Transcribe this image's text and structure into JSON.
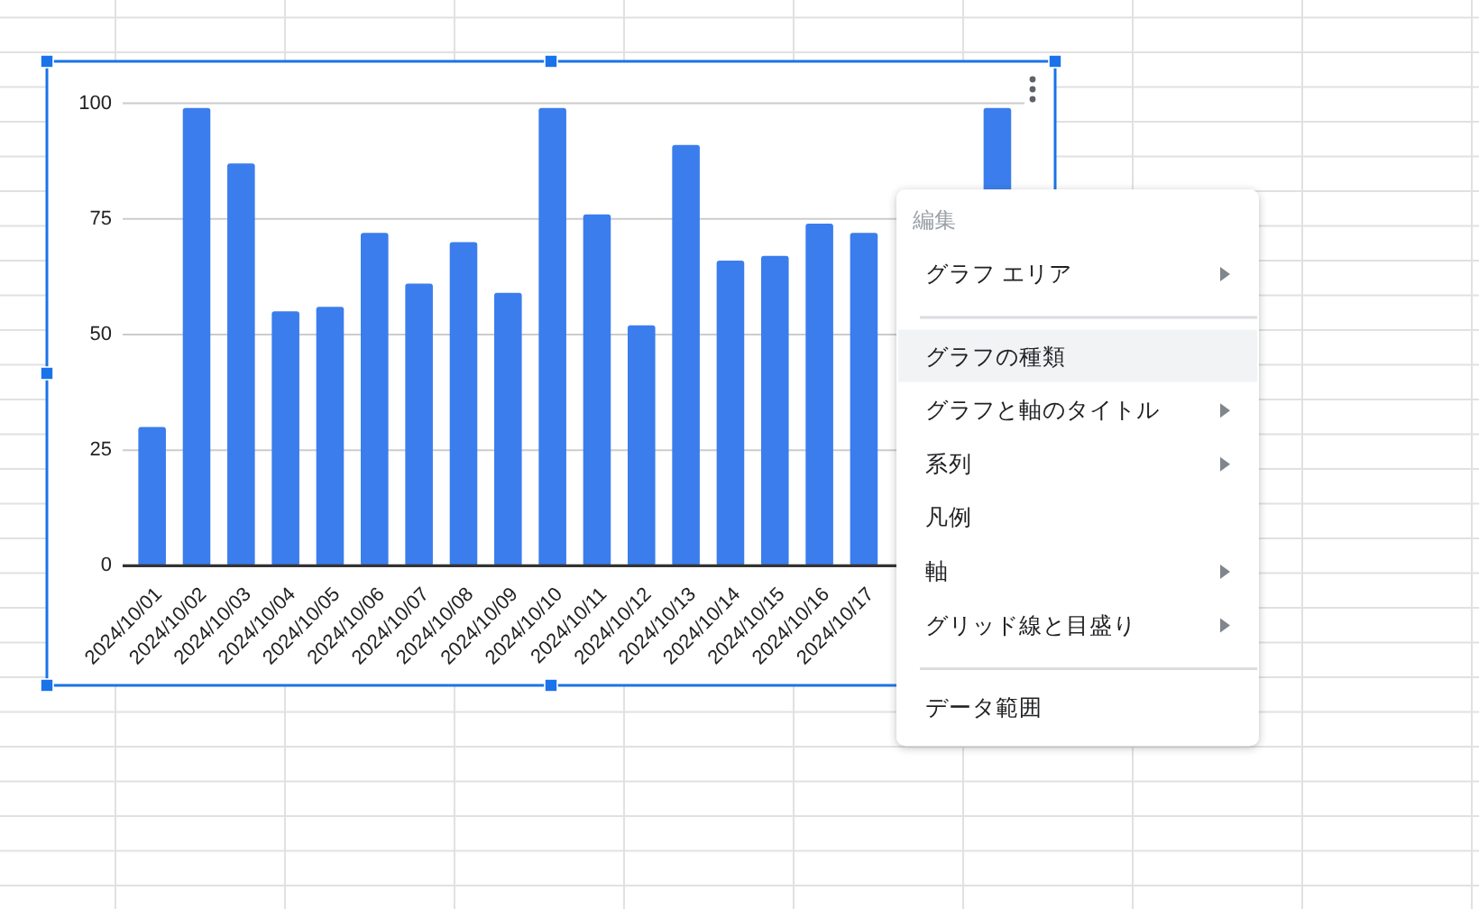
{
  "chart_data": {
    "type": "bar",
    "categories": [
      "2024/10/01",
      "2024/10/02",
      "2024/10/03",
      "2024/10/04",
      "2024/10/05",
      "2024/10/06",
      "2024/10/07",
      "2024/10/08",
      "2024/10/09",
      "2024/10/10",
      "2024/10/11",
      "2024/10/12",
      "2024/10/13",
      "2024/10/14",
      "2024/10/15",
      "2024/10/16",
      "2024/10/17",
      null,
      null,
      null
    ],
    "values": [
      30,
      99,
      87,
      55,
      56,
      72,
      61,
      70,
      59,
      99,
      76,
      52,
      91,
      66,
      67,
      74,
      72,
      null,
      null,
      99
    ],
    "color": "#3b7ded",
    "ylim": [
      0,
      100
    ],
    "yticks": [
      0,
      25,
      50,
      75,
      100
    ],
    "grid": "y",
    "annotations": [
      "編集",
      "グラフ エリア",
      "グラフの種類",
      "グラフと軸のタイトル",
      "系列",
      "凡例",
      "軸",
      "グリッド線と目盛り",
      "データ範囲"
    ]
  }
}
